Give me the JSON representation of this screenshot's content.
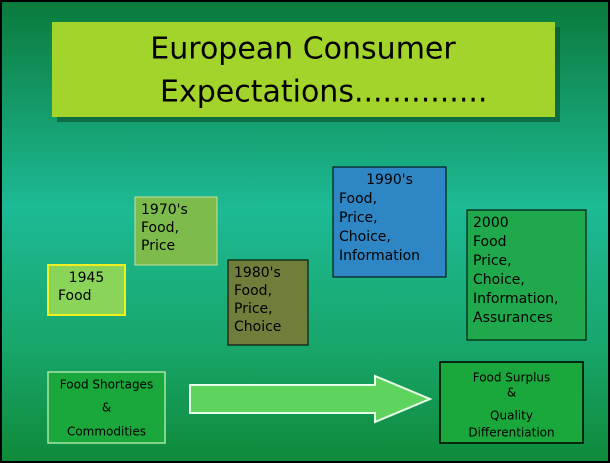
{
  "title": {
    "lines": [
      "European Consumer",
      "Expectations.............."
    ]
  },
  "boxes": [
    {
      "lines": [
        "1945",
        "Food"
      ]
    },
    {
      "lines": [
        "1970's",
        "Food,",
        "Price"
      ]
    },
    {
      "lines": [
        "1980's",
        "Food,",
        "Price,",
        "Choice"
      ]
    },
    {
      "lines": [
        "1990's",
        "Food,",
        "Price,",
        "Choice,",
        "Information"
      ]
    },
    {
      "lines": [
        "2000",
        "Food",
        "Price,",
        "Choice,",
        "Information,",
        "Assurances"
      ]
    }
  ],
  "left_box": {
    "lines": [
      "Food Shortages",
      "&",
      "Commodities"
    ]
  },
  "right_box": {
    "lines": [
      "Food Surplus",
      "&",
      "Quality",
      "Differentiation"
    ]
  }
}
